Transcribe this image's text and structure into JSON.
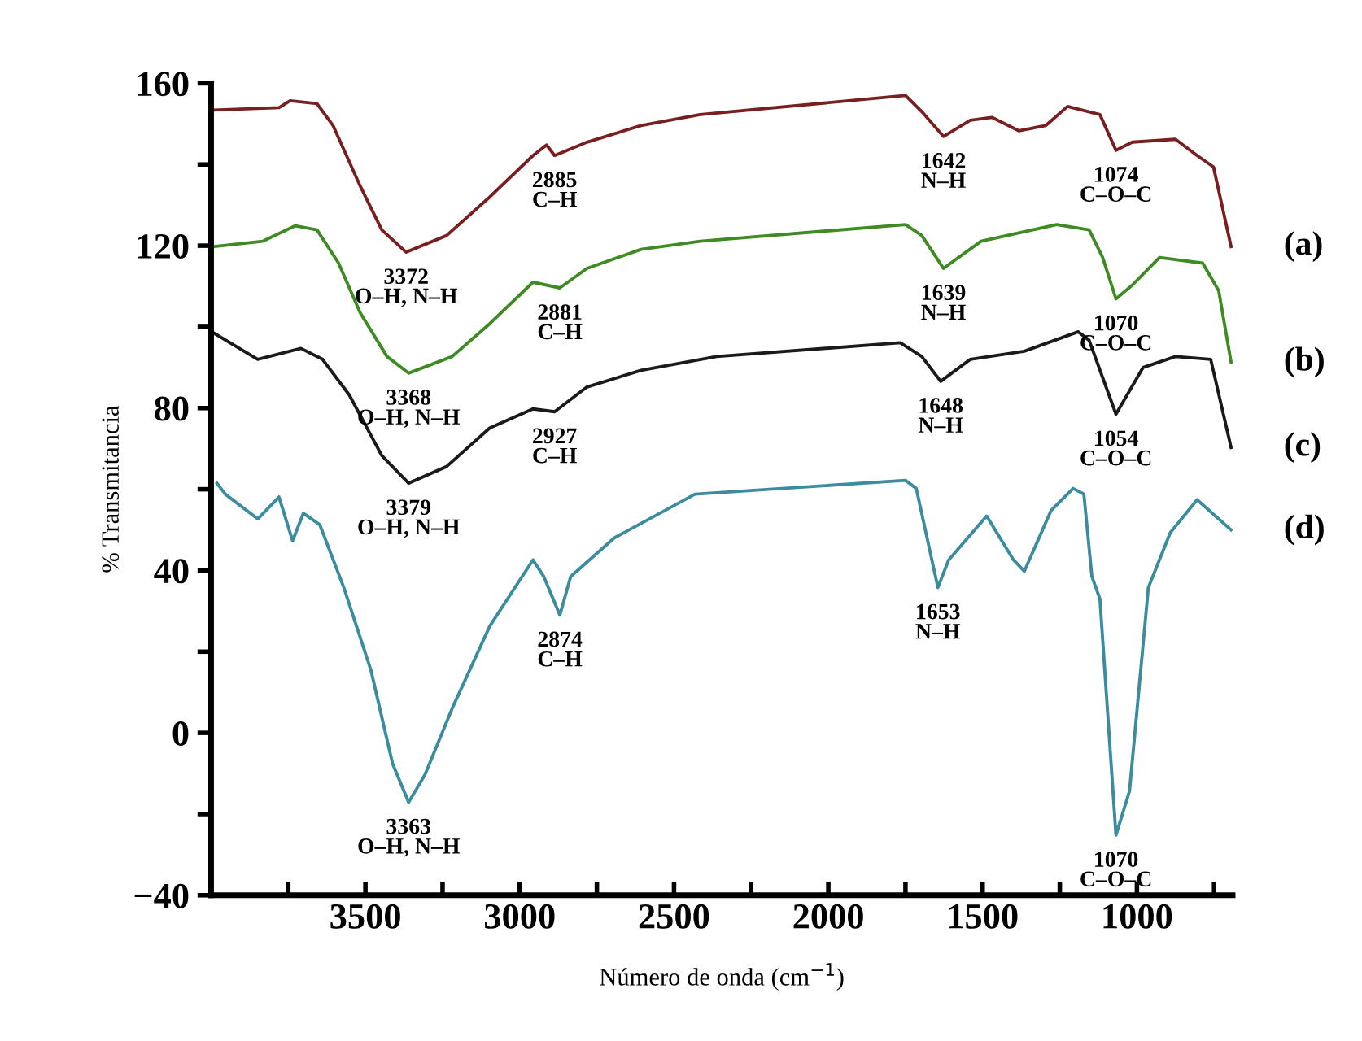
{
  "chart_data": {
    "type": "line",
    "xlabel": "Número de onda (cm$^{−1}$)",
    "ylabel": "% Transmitancia",
    "xlim": [
      4000,
      690
    ],
    "ylim": [
      -40,
      160
    ],
    "xticks": [
      {
        "value": 3750,
        "label": null
      },
      3500,
      {
        "value": 3250,
        "label": null
      },
      3000,
      {
        "value": 2750,
        "label": null
      },
      2500,
      {
        "value": 2250,
        "label": null
      },
      2000,
      {
        "value": 1750,
        "label": null
      },
      1500,
      {
        "value": 1250,
        "label": null
      },
      1000,
      {
        "value": 750,
        "label": null
      }
    ],
    "yticks": [
      -40,
      {
        "value": -20,
        "label": null
      },
      0,
      {
        "value": 20,
        "label": null
      },
      40,
      {
        "value": 60,
        "label": null
      },
      80,
      {
        "value": 100,
        "label": null
      },
      120,
      {
        "value": 140,
        "label": null
      },
      160
    ],
    "grid": false,
    "legend": false,
    "marker": "none",
    "line_style": "solid",
    "series": [
      {
        "name": "(a)",
        "color": "#7a1f1f",
        "x": [
          3990,
          3780,
          3744,
          3657,
          3605,
          3517,
          3447,
          3368,
          3237,
          3097,
          2957,
          2913,
          2887,
          2782,
          2607,
          2415,
          1750,
          1697,
          1627,
          1540,
          1470,
          1383,
          1295,
          1225,
          1120,
          1068,
          1015,
          875,
          805,
          752,
          695
        ],
        "values": [
          153.4,
          154,
          155.7,
          155,
          149.6,
          134.7,
          123.9,
          118.4,
          122.5,
          132,
          142.2,
          144.8,
          142.2,
          145.5,
          149.6,
          152.3,
          157,
          153,
          146.9,
          150.9,
          151.6,
          148.3,
          149.6,
          154.3,
          152.3,
          143.5,
          145.5,
          146.2,
          142.2,
          139.4,
          119.8
        ]
      },
      {
        "name": "(b)",
        "color": "#3d8b22",
        "x": [
          3990,
          3832,
          3727,
          3657,
          3587,
          3517,
          3430,
          3360,
          3219,
          3097,
          2957,
          2870,
          2782,
          2607,
          2415,
          1750,
          1697,
          1627,
          1505,
          1260,
          1155,
          1111,
          1068,
          1015,
          927,
          787,
          735,
          695
        ],
        "values": [
          119.8,
          121.1,
          124.9,
          123.9,
          115.7,
          103.5,
          92.7,
          88.6,
          92.7,
          100.8,
          111,
          109.6,
          114.4,
          119.1,
          121.1,
          125.2,
          122.5,
          114.4,
          121.1,
          125.2,
          123.9,
          117.1,
          106.9,
          110.3,
          117.1,
          115.7,
          108.9,
          91.3
        ]
      },
      {
        "name": "(c)",
        "color": "#1a1a1a",
        "x": [
          3998,
          3849,
          3709,
          3639,
          3552,
          3447,
          3360,
          3237,
          3097,
          2957,
          2887,
          2782,
          2607,
          2362,
          1767,
          1697,
          1636,
          1540,
          1365,
          1190,
          1155,
          1068,
          980,
          875,
          761,
          695
        ],
        "values": [
          98.8,
          92,
          94.7,
          92,
          83.2,
          68.3,
          61.5,
          65.6,
          75.1,
          79.8,
          79.1,
          85.2,
          89.3,
          92.7,
          96.1,
          92.7,
          86.6,
          92,
          94,
          98.8,
          96.7,
          78.5,
          90,
          92.7,
          92,
          70.3
        ]
      },
      {
        "name": "(d)",
        "color": "#3a8c9e",
        "x": [
          3981,
          3954,
          3849,
          3780,
          3736,
          3701,
          3648,
          3570,
          3482,
          3412,
          3360,
          3307,
          3219,
          3097,
          2957,
          2922,
          2870,
          2835,
          2694,
          2432,
          1750,
          1715,
          1645,
          1610,
          1487,
          1400,
          1365,
          1278,
          1207,
          1172,
          1146,
          1120,
          1068,
          1024,
          963,
          892,
          805,
          695
        ],
        "values": [
          61.5,
          58.8,
          52.7,
          58.1,
          47.3,
          54.1,
          51.3,
          35.8,
          15.4,
          -7.6,
          -17.1,
          -10.3,
          6,
          26.3,
          42.6,
          38.5,
          29,
          38.5,
          48,
          58.8,
          62.2,
          60.2,
          35.8,
          42.6,
          53.4,
          42.6,
          39.8,
          54.8,
          60.2,
          58.8,
          38.5,
          33,
          -25.2,
          -14.3,
          35.8,
          49.3,
          57.4,
          50
        ]
      }
    ],
    "annotations": [
      {
        "text": "2885\nC–H",
        "x": 2887,
        "y": 142.2
      },
      {
        "text": "3372\nO–H, N–H",
        "x": 3368,
        "y": 118.4
      },
      {
        "text": "1642\nN–H",
        "x": 1627,
        "y": 146.9
      },
      {
        "text": "1074\nC–O–C",
        "x": 1068,
        "y": 143.5
      },
      {
        "text": "2881\nC–H",
        "x": 2870,
        "y": 109.6
      },
      {
        "text": "3368\nO–H, N–H",
        "x": 3360,
        "y": 88.6
      },
      {
        "text": "1639\nN–H",
        "x": 1627,
        "y": 114.4
      },
      {
        "text": "1070\nC–O–C",
        "x": 1068,
        "y": 106.9
      },
      {
        "text": "2927\nC–H",
        "x": 2887,
        "y": 79.1
      },
      {
        "text": "3379\nO–H, N–H",
        "x": 3360,
        "y": 61.5
      },
      {
        "text": "1648\nN–H",
        "x": 1636,
        "y": 86.6
      },
      {
        "text": "1054\nC–O–C",
        "x": 1068,
        "y": 78.5
      },
      {
        "text": "2874\nC–H",
        "x": 2870,
        "y": 29
      },
      {
        "text": "3363\nO–H, N–H",
        "x": 3360,
        "y": -17.1
      },
      {
        "text": "1653\nN–H",
        "x": 1645,
        "y": 35.8
      },
      {
        "text": "1070\nC–O–C",
        "x": 1068,
        "y": -25.2
      }
    ]
  }
}
